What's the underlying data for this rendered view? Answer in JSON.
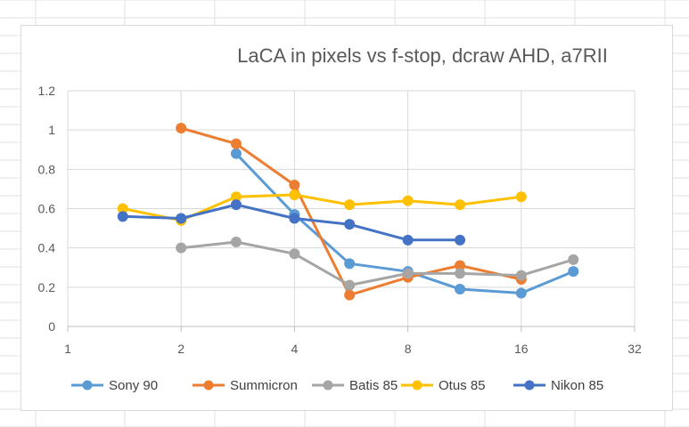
{
  "chart_data": {
    "type": "line",
    "title": "LaCA in pixels vs f-stop, dcraw AHD, a7RII",
    "xlabel": "",
    "ylabel": "",
    "x_scale": "log2",
    "xlim": [
      1,
      32
    ],
    "ylim": [
      0,
      1.2
    ],
    "x_ticks": [
      "1",
      "2",
      "4",
      "8",
      "16",
      "32"
    ],
    "y_ticks": [
      "0",
      "0.2",
      "0.4",
      "0.6",
      "0.8",
      "1",
      "1.2"
    ],
    "grid": "horizontal",
    "legend": "bottom",
    "series": [
      {
        "name": "Sony 90",
        "color": "#5b9bd5",
        "x": [
          2.8,
          4,
          5.6,
          8,
          11,
          16,
          22
        ],
        "y": [
          0.88,
          0.57,
          0.32,
          0.28,
          0.19,
          0.17,
          0.28
        ]
      },
      {
        "name": "Summicron",
        "color": "#ed7d31",
        "x": [
          2,
          2.8,
          4,
          5.6,
          8,
          11,
          16
        ],
        "y": [
          1.01,
          0.93,
          0.72,
          0.16,
          0.25,
          0.31,
          0.24
        ]
      },
      {
        "name": "Batis 85",
        "color": "#a5a5a5",
        "x": [
          2,
          2.8,
          4,
          5.6,
          8,
          11,
          16,
          22
        ],
        "y": [
          0.4,
          0.43,
          0.37,
          0.21,
          0.27,
          0.27,
          0.26,
          0.34
        ]
      },
      {
        "name": "Otus 85",
        "color": "#ffc000",
        "x": [
          1.4,
          2,
          2.8,
          4,
          5.6,
          8,
          11,
          16
        ],
        "y": [
          0.6,
          0.54,
          0.66,
          0.67,
          0.62,
          0.64,
          0.62,
          0.66
        ]
      },
      {
        "name": "Nikon 85",
        "color": "#4472c4",
        "x": [
          1.4,
          2,
          2.8,
          4,
          5.6,
          8,
          11
        ],
        "y": [
          0.56,
          0.55,
          0.62,
          0.55,
          0.52,
          0.44,
          0.44
        ]
      }
    ]
  }
}
